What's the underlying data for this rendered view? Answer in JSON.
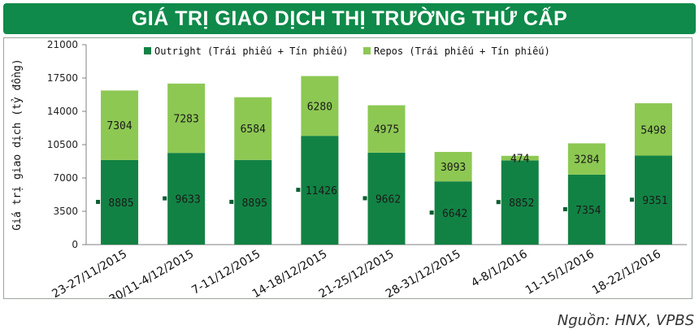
{
  "header": {
    "title": "GIÁ TRỊ GIAO DỊCH THỊ TRƯỜNG THỨ CẤP"
  },
  "footer": {
    "source": "Nguồn: HNX, VPBS"
  },
  "colors": {
    "title_bg": "#0f8a4a",
    "outright": "#128244",
    "repos": "#8dc853"
  },
  "chart_data": {
    "type": "bar",
    "stacked": true,
    "title": "",
    "ylabel": "Giá trị giao dịch (tỷ đồng)",
    "xlabel": "",
    "ylim": [
      0,
      21000
    ],
    "yticks": [
      0,
      3500,
      7000,
      10500,
      14000,
      17500,
      21000
    ],
    "grid": false,
    "legend_position": "top",
    "categories": [
      "23-27/11/2015",
      "30/11-4/12/2015",
      "7-11/12/2015",
      "14-18/12/2015",
      "21-25/12/2015",
      "28-31/12/2015",
      "4-8/1/2016",
      "11-15/1/2016",
      "18-22/1/2016"
    ],
    "series": [
      {
        "name": "Outright (Trái phiếu + Tín phiếu)",
        "color": "#128244",
        "values": [
          8885,
          9633,
          8895,
          11426,
          9662,
          6642,
          8852,
          7354,
          9351
        ]
      },
      {
        "name": "Repos (Trái phiếu + Tín phiếu)",
        "color": "#8dc853",
        "values": [
          7304,
          7283,
          6584,
          6280,
          4975,
          3093,
          474,
          3284,
          5498
        ]
      }
    ]
  }
}
